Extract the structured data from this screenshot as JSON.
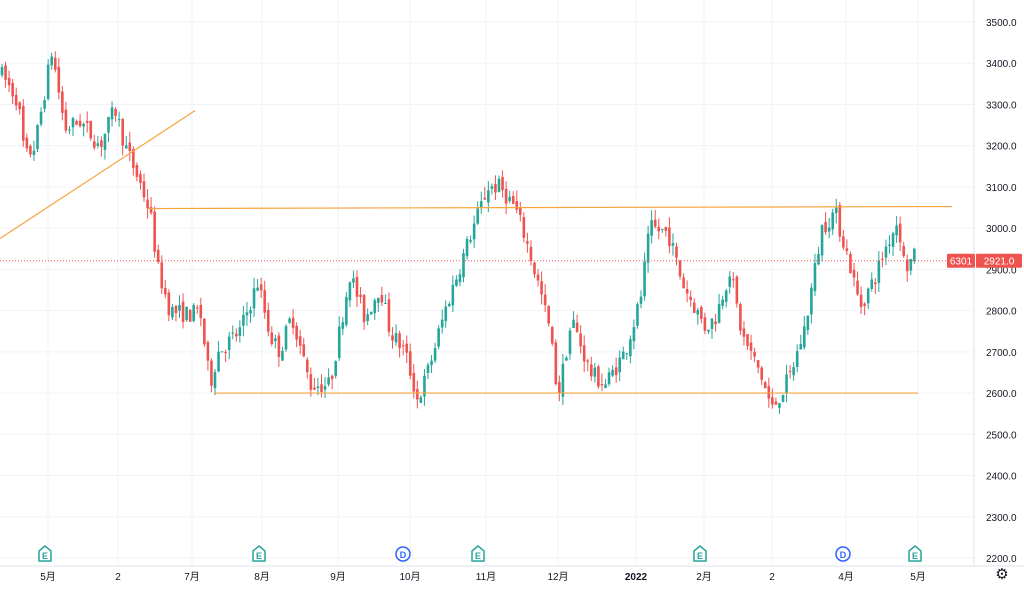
{
  "chart_data": {
    "type": "candlestick",
    "symbol": "6301",
    "last_price_label": "2921.0",
    "last_price": 2921.0,
    "ylim": [
      2175,
      3525
    ],
    "y_ticks": [
      "3500.0",
      "3400.0",
      "3300.0",
      "3200.0",
      "3100.0",
      "3000.0",
      "2900.0",
      "2800.0",
      "2700.0",
      "2600.0",
      "2500.0",
      "2400.0",
      "2300.0",
      "2200.0"
    ],
    "x_ticks": [
      "5月",
      "2",
      "7月",
      "8月",
      "9月",
      "10月",
      "11月",
      "12月",
      "2022",
      "2月",
      "2",
      "4月",
      "5月"
    ],
    "grid": true,
    "colors": {
      "up": "#26a69a",
      "down": "#ef5350",
      "trendline": "#f7a43d",
      "event_E": "#26a69a",
      "event_D": "#2962ff",
      "price_line": "#ef5350"
    },
    "horizontal_levels": [
      3050,
      2600
    ],
    "trendline": [
      [
        0,
        2975
      ],
      [
        195,
        3285
      ]
    ],
    "events": [
      "E",
      "E",
      "D",
      "E",
      "E",
      "D",
      "E"
    ],
    "ohlc_waypoints": [
      [
        0,
        3380
      ],
      [
        18,
        3310
      ],
      [
        25,
        3170
      ],
      [
        35,
        3200
      ],
      [
        52,
        3430
      ],
      [
        65,
        3240
      ],
      [
        80,
        3260
      ],
      [
        100,
        3200
      ],
      [
        115,
        3290
      ],
      [
        125,
        3200
      ],
      [
        140,
        3110
      ],
      [
        150,
        3040
      ],
      [
        158,
        2900
      ],
      [
        170,
        2800
      ],
      [
        190,
        2790
      ],
      [
        200,
        2800
      ],
      [
        210,
        2620
      ],
      [
        218,
        2700
      ],
      [
        240,
        2750
      ],
      [
        258,
        2870
      ],
      [
        270,
        2740
      ],
      [
        280,
        2700
      ],
      [
        292,
        2790
      ],
      [
        310,
        2620
      ],
      [
        330,
        2620
      ],
      [
        350,
        2890
      ],
      [
        365,
        2780
      ],
      [
        380,
        2860
      ],
      [
        390,
        2750
      ],
      [
        405,
        2700
      ],
      [
        418,
        2580
      ],
      [
        430,
        2670
      ],
      [
        445,
        2800
      ],
      [
        470,
        2980
      ],
      [
        488,
        3100
      ],
      [
        500,
        3100
      ],
      [
        515,
        3050
      ],
      [
        525,
        2980
      ],
      [
        540,
        2850
      ],
      [
        550,
        2750
      ],
      [
        558,
        2590
      ],
      [
        572,
        2780
      ],
      [
        590,
        2650
      ],
      [
        605,
        2620
      ],
      [
        625,
        2700
      ],
      [
        640,
        2820
      ],
      [
        650,
        3000
      ],
      [
        668,
        2990
      ],
      [
        682,
        2870
      ],
      [
        705,
        2760
      ],
      [
        715,
        2780
      ],
      [
        730,
        2900
      ],
      [
        742,
        2740
      ],
      [
        760,
        2650
      ],
      [
        772,
        2560
      ],
      [
        790,
        2640
      ],
      [
        805,
        2760
      ],
      [
        822,
        3000
      ],
      [
        835,
        3040
      ],
      [
        848,
        2930
      ],
      [
        860,
        2810
      ],
      [
        875,
        2880
      ],
      [
        885,
        2950
      ],
      [
        898,
        3020
      ],
      [
        905,
        2900
      ],
      [
        914,
        2930
      ]
    ]
  }
}
